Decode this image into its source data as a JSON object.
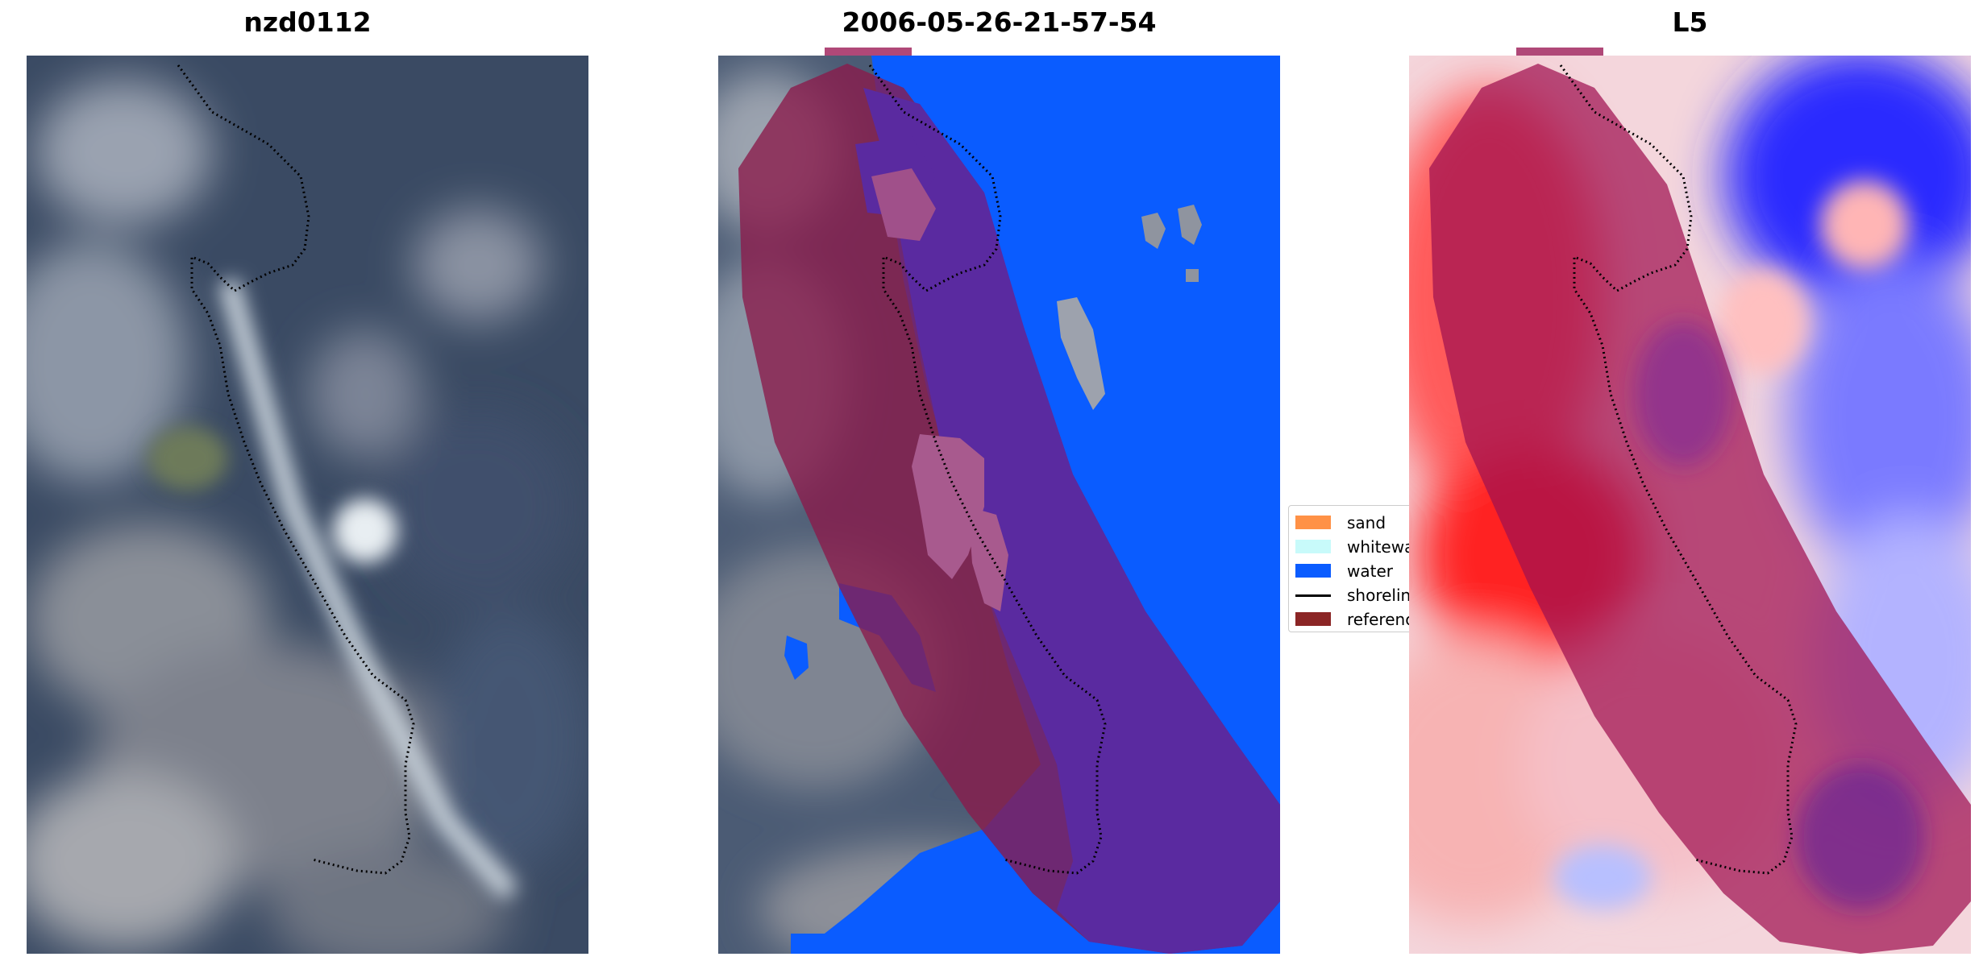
{
  "panels": [
    {
      "title": "nzd0112"
    },
    {
      "title": "2006-05-26-21-57-54"
    },
    {
      "title": "L5"
    }
  ],
  "legend": {
    "items": [
      {
        "label": "sand",
        "color": "#ff9146",
        "kind": "patch"
      },
      {
        "label": "whitewater",
        "color": "#c8fafa",
        "kind": "patch"
      },
      {
        "label": "water",
        "color": "#0a5cff",
        "kind": "patch"
      },
      {
        "label": "shoreline",
        "color": "#000000",
        "kind": "line"
      },
      {
        "label": "reference",
        "color": "#8b2525",
        "kind": "patch"
      }
    ]
  },
  "colors": {
    "reference_overlay": "#8b1a4a",
    "water": "#0a5cff",
    "water_in_buffer": "#5a2aa0",
    "shoreline": "#000000",
    "index_positive": "#ff3030",
    "index_negative": "#3030ff"
  }
}
